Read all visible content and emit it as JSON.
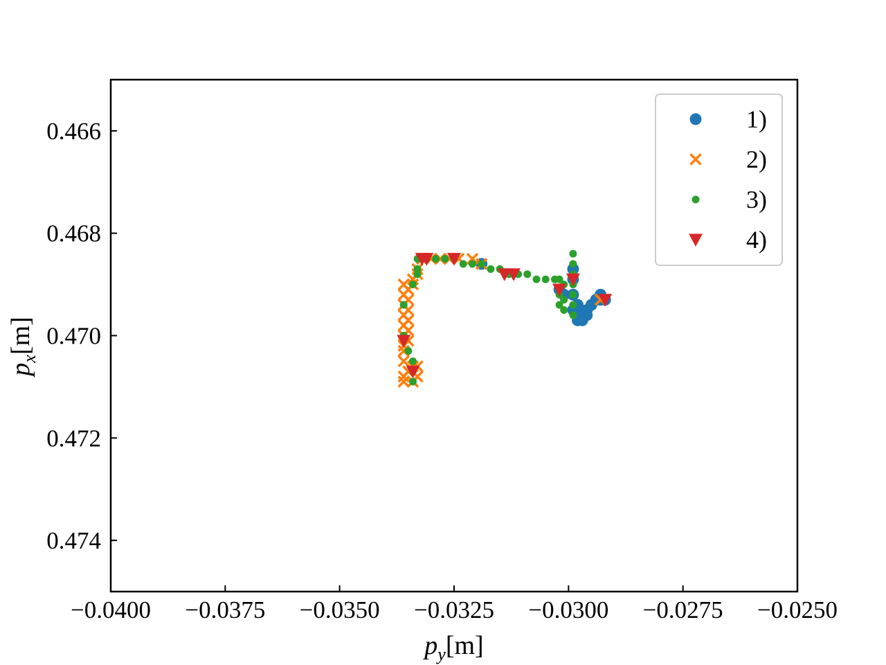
{
  "chart_data": {
    "type": "scatter",
    "xlabel": "p_y[m]",
    "ylabel": "p_x[m]",
    "xlim": [
      -0.04,
      -0.025
    ],
    "ylim": [
      0.475,
      0.465
    ],
    "y_inverted": true,
    "grid": false,
    "legend_position": "top-right",
    "x_ticks": [
      -0.04,
      -0.0375,
      -0.035,
      -0.0325,
      -0.03,
      -0.0275,
      -0.025
    ],
    "x_tick_labels": [
      "−0.0400",
      "−0.0375",
      "−0.0350",
      "−0.0325",
      "−0.0300",
      "−0.0275",
      "−0.0250"
    ],
    "y_ticks": [
      0.466,
      0.468,
      0.47,
      0.472,
      0.474
    ],
    "y_tick_labels": [
      "0.466",
      "0.468",
      "0.470",
      "0.472",
      "0.474"
    ],
    "series": [
      {
        "name": "1)",
        "marker": "circle",
        "color": "#1f77b4",
        "points": [
          [
            -0.0299,
            0.4687
          ],
          [
            -0.0299,
            0.4689
          ],
          [
            -0.0298,
            0.4697
          ],
          [
            -0.0297,
            0.4697
          ],
          [
            -0.0297,
            0.4696
          ],
          [
            -0.0296,
            0.4696
          ],
          [
            -0.0296,
            0.4695
          ],
          [
            -0.0295,
            0.4694
          ],
          [
            -0.0294,
            0.4693
          ],
          [
            -0.0293,
            0.4693
          ],
          [
            -0.0292,
            0.4693
          ],
          [
            -0.0293,
            0.4692
          ],
          [
            -0.0302,
            0.4691
          ],
          [
            -0.0301,
            0.4692
          ],
          [
            -0.0319,
            0.4686
          ],
          [
            -0.0299,
            0.4692
          ],
          [
            -0.0299,
            0.4695
          ],
          [
            -0.0298,
            0.4694
          ]
        ]
      },
      {
        "name": "2)",
        "marker": "x",
        "color": "#ff7f0e",
        "points": [
          [
            -0.0336,
            0.469
          ],
          [
            -0.0336,
            0.4692
          ],
          [
            -0.0336,
            0.4694
          ],
          [
            -0.0336,
            0.4696
          ],
          [
            -0.0336,
            0.4698
          ],
          [
            -0.0336,
            0.47
          ],
          [
            -0.0336,
            0.4702
          ],
          [
            -0.0335,
            0.4701
          ],
          [
            -0.0335,
            0.4699
          ],
          [
            -0.0335,
            0.4697
          ],
          [
            -0.0335,
            0.4695
          ],
          [
            -0.0335,
            0.4693
          ],
          [
            -0.0335,
            0.4691
          ],
          [
            -0.0334,
            0.4689
          ],
          [
            -0.0334,
            0.469
          ],
          [
            -0.0333,
            0.4688
          ],
          [
            -0.0333,
            0.4687
          ],
          [
            -0.0332,
            0.4685
          ],
          [
            -0.033,
            0.4685
          ],
          [
            -0.0328,
            0.4685
          ],
          [
            -0.0326,
            0.4685
          ],
          [
            -0.0324,
            0.4685
          ],
          [
            -0.0321,
            0.4685
          ],
          [
            -0.0319,
            0.4686
          ],
          [
            -0.0336,
            0.4705
          ],
          [
            -0.0336,
            0.4708
          ],
          [
            -0.0336,
            0.4709
          ],
          [
            -0.0335,
            0.4707
          ],
          [
            -0.0334,
            0.4706
          ],
          [
            -0.0334,
            0.4709
          ],
          [
            -0.0333,
            0.4708
          ],
          [
            -0.0333,
            0.4706
          ],
          [
            -0.0336,
            0.4703
          ],
          [
            -0.0293,
            0.4693
          ]
        ]
      },
      {
        "name": "3)",
        "marker": "dot",
        "color": "#2ca02c",
        "points": [
          [
            -0.0333,
            0.4687
          ],
          [
            -0.0333,
            0.4685
          ],
          [
            -0.0331,
            0.4685
          ],
          [
            -0.0329,
            0.4685
          ],
          [
            -0.0327,
            0.4685
          ],
          [
            -0.0325,
            0.4685
          ],
          [
            -0.0323,
            0.4686
          ],
          [
            -0.0321,
            0.4686
          ],
          [
            -0.0319,
            0.4686
          ],
          [
            -0.0317,
            0.4687
          ],
          [
            -0.0315,
            0.4687
          ],
          [
            -0.0313,
            0.4688
          ],
          [
            -0.0311,
            0.4688
          ],
          [
            -0.0309,
            0.4688
          ],
          [
            -0.0307,
            0.4689
          ],
          [
            -0.0305,
            0.4689
          ],
          [
            -0.0303,
            0.4689
          ],
          [
            -0.0302,
            0.4689
          ],
          [
            -0.0302,
            0.4692
          ],
          [
            -0.0302,
            0.4694
          ],
          [
            -0.0301,
            0.4695
          ],
          [
            -0.0301,
            0.4693
          ],
          [
            -0.0301,
            0.469
          ],
          [
            -0.0299,
            0.4684
          ],
          [
            -0.0299,
            0.4686
          ],
          [
            -0.0299,
            0.4688
          ],
          [
            -0.0299,
            0.469
          ],
          [
            -0.0299,
            0.4692
          ],
          [
            -0.0299,
            0.4694
          ],
          [
            -0.0299,
            0.4696
          ],
          [
            -0.0336,
            0.4694
          ],
          [
            -0.0336,
            0.47
          ],
          [
            -0.0335,
            0.4703
          ],
          [
            -0.0334,
            0.4705
          ],
          [
            -0.0334,
            0.4707
          ],
          [
            -0.0334,
            0.4709
          ],
          [
            -0.0334,
            0.469
          ],
          [
            -0.0333,
            0.4688
          ]
        ]
      },
      {
        "name": "4)",
        "marker": "triangle_down",
        "color": "#d62728",
        "points": [
          [
            -0.0332,
            0.4685
          ],
          [
            -0.0331,
            0.4685
          ],
          [
            -0.0325,
            0.4685
          ],
          [
            -0.0314,
            0.4688
          ],
          [
            -0.0312,
            0.4688
          ],
          [
            -0.0302,
            0.4691
          ],
          [
            -0.0299,
            0.4689
          ],
          [
            -0.0292,
            0.4693
          ],
          [
            -0.0336,
            0.4701
          ],
          [
            -0.0334,
            0.4707
          ]
        ]
      }
    ]
  }
}
